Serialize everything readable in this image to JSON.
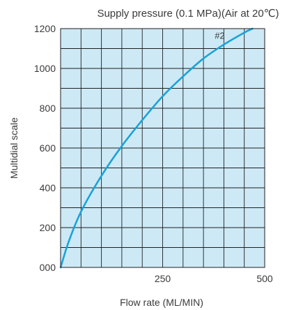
{
  "chart_data": {
    "type": "line",
    "title": "Supply pressure (0.1 MPa)(Air at 20℃)",
    "xlabel": "Flow rate (ML/MIN)",
    "ylabel": "Multidial scale",
    "xlim": [
      0,
      500
    ],
    "ylim": [
      0,
      1200
    ],
    "x_ticks": [
      {
        "value": 250,
        "label": "250"
      },
      {
        "value": 500,
        "label": "500"
      }
    ],
    "y_ticks": [
      {
        "value": 0,
        "label": "000"
      },
      {
        "value": 200,
        "label": "200"
      },
      {
        "value": 400,
        "label": "400"
      },
      {
        "value": 600,
        "label": "600"
      },
      {
        "value": 800,
        "label": "800"
      },
      {
        "value": 1000,
        "label": "1000"
      },
      {
        "value": 1200,
        "label": "1200"
      }
    ],
    "grid": true,
    "grid_x_step": 50,
    "grid_y_step": 100,
    "series": [
      {
        "name": "#2",
        "color": "#1aa3d9",
        "x": [
          0,
          20,
          50,
          100,
          150,
          200,
          250,
          300,
          350,
          400,
          450,
          470
        ],
        "y": [
          0,
          130,
          280,
          460,
          610,
          740,
          860,
          960,
          1050,
          1120,
          1180,
          1200
        ]
      }
    ],
    "annotations": [
      {
        "text": "#2",
        "x": 390,
        "y": 1150
      }
    ],
    "colors": {
      "plot_background": "#cde9f6",
      "grid": "#1e1e1e",
      "text": "#3a3a3a"
    }
  }
}
